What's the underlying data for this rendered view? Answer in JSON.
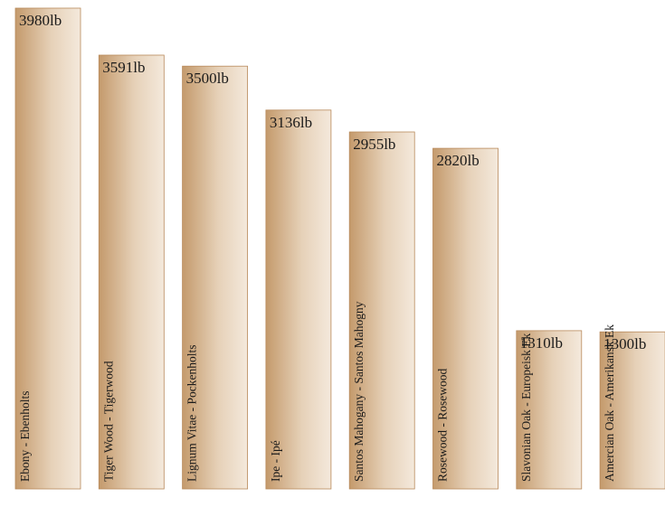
{
  "chart_data": {
    "type": "bar",
    "title": "",
    "xlabel": "",
    "ylabel": "",
    "unit": "lb",
    "categories": [
      "Ebony - Ebenholts",
      "Tiger Wood - Tigerwood",
      "Lignum Vitae - Pockenholts",
      "Ipe - Ipé",
      "Santos Mahogany - Santos Mahogny",
      "Rosewood - Rosewood",
      "Slavonian Oak - Europeisk Ek",
      "Amercian Oak - Amerikansk Ek"
    ],
    "values": [
      3980,
      3591,
      3500,
      3136,
      2955,
      2820,
      1310,
      1300
    ],
    "value_labels": [
      "3980lb",
      "3591lb",
      "3500lb",
      "3136lb",
      "2955lb",
      "2820lb",
      "1310lb",
      "1300lb"
    ],
    "ylim": [
      0,
      3980
    ],
    "grid": false,
    "legend": "none",
    "colors": {
      "bar_dark": "#c49a6c",
      "bar_light": "#f4e9dc",
      "bar_edge": "#b8895a",
      "text": "#1a1a1a"
    }
  }
}
